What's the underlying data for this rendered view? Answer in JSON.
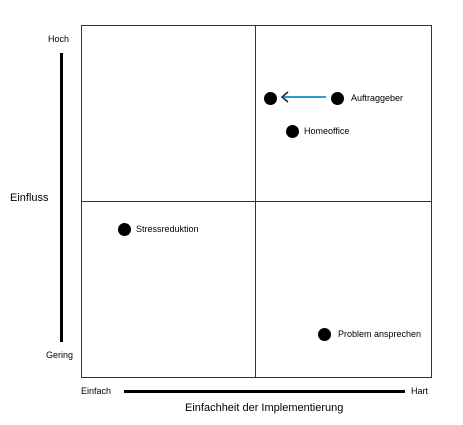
{
  "y_axis": {
    "title": "Einfluss",
    "high": "Hoch",
    "low": "Gering"
  },
  "x_axis": {
    "title": "Einfachheit der Implementierung",
    "low": "Einfach",
    "high": "Hart"
  },
  "items": [
    {
      "label": "Auftraggeber"
    },
    {
      "label": "Homeoffice"
    },
    {
      "label": "Stressreduktion"
    },
    {
      "label": "Problem ansprechen"
    }
  ],
  "colors": {
    "arrow": "#2b9bd6",
    "dot": "#000000"
  }
}
